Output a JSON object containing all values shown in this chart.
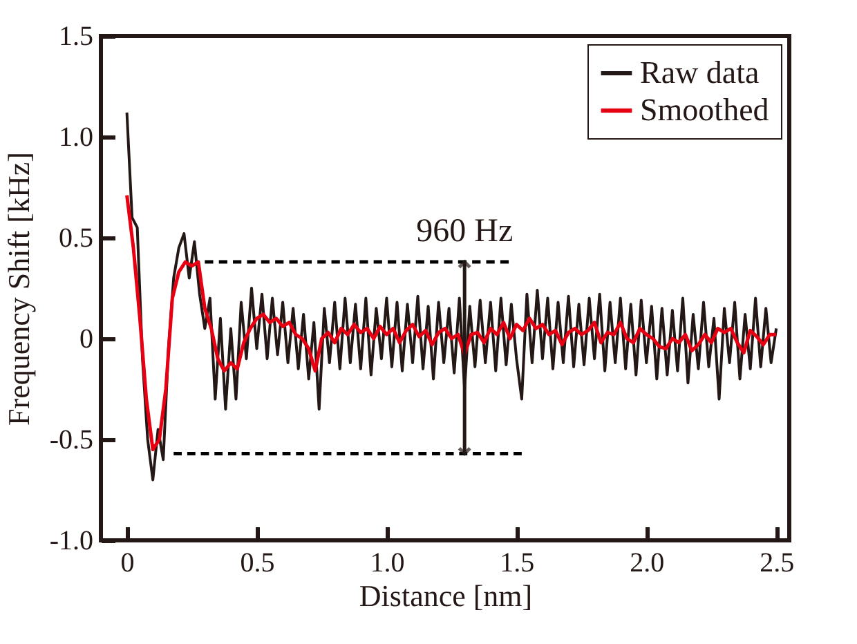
{
  "chart_data": {
    "type": "line",
    "xlabel": "Distance [nm]",
    "ylabel": "Frequency Shift [kHz]",
    "xlim": [
      -0.1,
      2.55
    ],
    "xticks": [
      {
        "value": 0,
        "label": "0"
      },
      {
        "value": 0.5,
        "label": "0.5"
      },
      {
        "value": 1,
        "label": "1.0"
      },
      {
        "value": 1.5,
        "label": "1.5"
      },
      {
        "value": 2,
        "label": "2.0"
      },
      {
        "value": 2.5,
        "label": "2.5"
      }
    ],
    "ylim": [
      -1,
      1.5
    ],
    "yticks": [
      {
        "value": -1,
        "label": "-1.0"
      },
      {
        "value": -0.5,
        "label": "-0.5"
      },
      {
        "value": 0,
        "label": "0"
      },
      {
        "value": 0.5,
        "label": "0.5"
      },
      {
        "value": 1,
        "label": "1.0"
      },
      {
        "value": 1.5,
        "label": "1.5"
      }
    ],
    "grid": false,
    "legend": "top right",
    "marker": "none",
    "annotations": [
      {
        "text": "960 Hz",
        "x": 1.3,
        "y": 0.38
      }
    ],
    "series": [
      {
        "name": "Raw data",
        "color": "#231815",
        "line_style": "solid",
        "x": [
          0,
          0.02,
          0.04,
          0.06,
          0.08,
          0.1,
          0.12,
          0.14,
          0.16,
          0.18,
          0.2,
          0.22,
          0.24,
          0.26,
          0.28,
          0.3,
          0.32,
          0.34,
          0.36,
          0.38,
          0.4,
          0.42,
          0.44,
          0.46,
          0.48,
          0.5,
          0.52,
          0.54,
          0.56,
          0.58,
          0.6,
          0.62,
          0.64,
          0.66,
          0.68,
          0.7,
          0.72,
          0.74,
          0.76,
          0.78,
          0.8,
          0.82,
          0.84,
          0.86,
          0.88,
          0.9,
          0.92,
          0.94,
          0.96,
          0.98,
          1,
          1.02,
          1.04,
          1.06,
          1.08,
          1.1,
          1.12,
          1.14,
          1.16,
          1.18,
          1.2,
          1.22,
          1.24,
          1.26,
          1.28,
          1.3,
          1.32,
          1.34,
          1.36,
          1.38,
          1.4,
          1.42,
          1.44,
          1.46,
          1.48,
          1.5,
          1.52,
          1.54,
          1.56,
          1.58,
          1.6,
          1.62,
          1.64,
          1.66,
          1.68,
          1.7,
          1.72,
          1.74,
          1.76,
          1.78,
          1.8,
          1.82,
          1.84,
          1.86,
          1.88,
          1.9,
          1.92,
          1.94,
          1.96,
          1.98,
          2,
          2.02,
          2.04,
          2.06,
          2.08,
          2.1,
          2.12,
          2.14,
          2.16,
          2.18,
          2.2,
          2.22,
          2.24,
          2.26,
          2.28,
          2.3,
          2.32,
          2.34,
          2.36,
          2.38,
          2.4,
          2.42,
          2.44,
          2.46,
          2.48,
          2.5
        ],
        "values": [
          1.12,
          0.6,
          0.55,
          -0.1,
          -0.5,
          -0.7,
          -0.45,
          -0.6,
          -0.05,
          0.3,
          0.45,
          0.52,
          0.3,
          0.48,
          0.22,
          0.05,
          0.2,
          -0.3,
          0.1,
          -0.35,
          0.05,
          -0.3,
          0.18,
          -0.1,
          0.25,
          -0.05,
          0.22,
          -0.1,
          0.2,
          -0.08,
          0.18,
          -0.12,
          0.15,
          -0.15,
          0.12,
          -0.2,
          0.08,
          -0.35,
          0.15,
          -0.12,
          0.18,
          -0.15,
          0.2,
          -0.12,
          0.17,
          -0.15,
          0.2,
          -0.18,
          0.15,
          -0.1,
          0.2,
          -0.14,
          0.18,
          -0.16,
          0.17,
          -0.12,
          0.21,
          -0.15,
          0.16,
          -0.2,
          0.18,
          -0.12,
          0.15,
          -0.17,
          0.2,
          -0.25,
          0.16,
          -0.14,
          0.19,
          -0.12,
          0.18,
          -0.16,
          0.2,
          -0.13,
          0.17,
          -0.1,
          -0.3,
          0.22,
          -0.12,
          0.24,
          -0.1,
          0.2,
          -0.15,
          0.18,
          -0.12,
          0.21,
          -0.14,
          0.17,
          -0.13,
          0.2,
          -0.1,
          0.22,
          -0.16,
          0.18,
          -0.12,
          0.2,
          -0.15,
          0.17,
          -0.18,
          0.19,
          -0.12,
          0.16,
          -0.2,
          0.15,
          -0.18,
          0.14,
          -0.16,
          0.2,
          -0.22,
          0.12,
          -0.15,
          0.18,
          -0.14,
          0.1,
          -0.3,
          0.15,
          -0.12,
          0.18,
          -0.2,
          0.12,
          -0.15,
          0.2,
          -0.14,
          0.15,
          -0.12,
          0.05
        ]
      },
      {
        "name": "Smoothed",
        "color": "#e60012",
        "line_style": "solid",
        "x": [
          0,
          0.025,
          0.05,
          0.075,
          0.1,
          0.125,
          0.15,
          0.175,
          0.2,
          0.225,
          0.25,
          0.275,
          0.3,
          0.325,
          0.35,
          0.375,
          0.4,
          0.425,
          0.45,
          0.475,
          0.5,
          0.525,
          0.55,
          0.575,
          0.6,
          0.625,
          0.65,
          0.675,
          0.7,
          0.725,
          0.75,
          0.775,
          0.8,
          0.825,
          0.85,
          0.875,
          0.9,
          0.925,
          0.95,
          0.975,
          1,
          1.025,
          1.05,
          1.075,
          1.1,
          1.125,
          1.15,
          1.175,
          1.2,
          1.225,
          1.25,
          1.275,
          1.3,
          1.325,
          1.35,
          1.375,
          1.4,
          1.425,
          1.45,
          1.475,
          1.5,
          1.525,
          1.55,
          1.575,
          1.6,
          1.625,
          1.65,
          1.675,
          1.7,
          1.725,
          1.75,
          1.775,
          1.8,
          1.825,
          1.85,
          1.875,
          1.9,
          1.925,
          1.95,
          1.975,
          2,
          2.025,
          2.05,
          2.075,
          2.1,
          2.125,
          2.15,
          2.175,
          2.2,
          2.225,
          2.25,
          2.275,
          2.3,
          2.325,
          2.35,
          2.375,
          2.4,
          2.425,
          2.45,
          2.475,
          2.5
        ],
        "values": [
          0.71,
          0.45,
          0.1,
          -0.3,
          -0.55,
          -0.5,
          -0.25,
          0.2,
          0.33,
          0.38,
          0.36,
          0.38,
          0.15,
          0.05,
          -0.1,
          -0.16,
          -0.12,
          -0.15,
          -0.02,
          0.05,
          0.1,
          0.12,
          0.08,
          0.1,
          0.06,
          0.08,
          0.02,
          0,
          -0.05,
          -0.16,
          0,
          0.03,
          -0.02,
          0.05,
          0.02,
          0.07,
          0.03,
          0.05,
          0,
          0.06,
          0.02,
          0.05,
          -0.02,
          0.04,
          0.07,
          0.01,
          0.04,
          -0.03,
          0.03,
          0.05,
          0,
          0.02,
          -0.08,
          0.02,
          0.03,
          -0.02,
          0.05,
          0.02,
          0.08,
          0,
          0.07,
          0.04,
          0.1,
          0.05,
          0.07,
          0.02,
          0.04,
          -0.03,
          0.03,
          0.05,
          0.02,
          0.04,
          0.08,
          -0.02,
          0.03,
          0.02,
          0.08,
          0,
          -0.02,
          0.05,
          0.02,
          0,
          -0.04,
          -0.05,
          0,
          -0.02,
          0.02,
          -0.06,
          -0.03,
          0.02,
          -0.02,
          0.05,
          0.03,
          0.05,
          -0.02,
          -0.07,
          0.04,
          0.01,
          -0.03,
          0.02,
          0.02
        ]
      },
      {
        "color": "#000000",
        "line_style": "dashed",
        "x": [
          0.3,
          1.47
        ],
        "values": [
          0.38,
          0.38
        ]
      },
      {
        "color": "#000000",
        "line_style": "dashed",
        "x": [
          0.18,
          1.52
        ],
        "values": [
          -0.57,
          -0.57
        ]
      }
    ]
  }
}
